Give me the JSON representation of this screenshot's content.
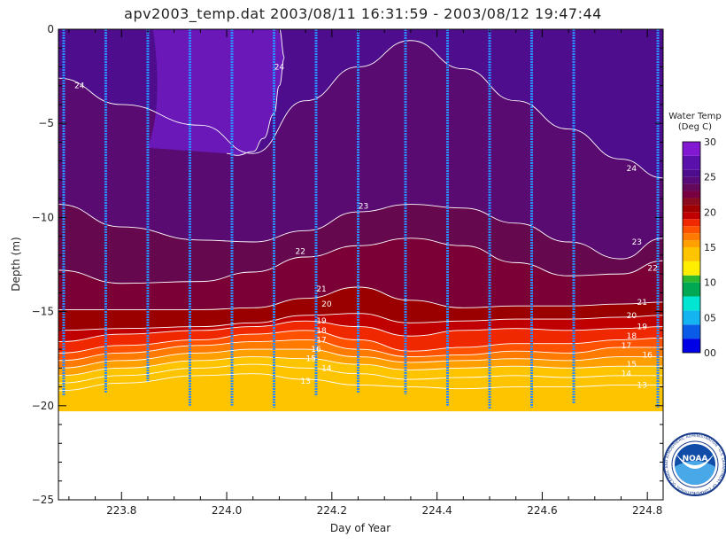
{
  "title": "apv2003_temp.dat  2003/08/11 16:31:59 - 2003/08/12 19:47:44",
  "chart_data": {
    "type": "heatmap",
    "title": "apv2003_temp.dat  2003/08/11 16:31:59 - 2003/08/12 19:47:44",
    "xlabel": "Day of Year",
    "ylabel": "Depth (m)",
    "xlim": [
      223.68,
      224.83
    ],
    "ylim": [
      -25,
      0
    ],
    "x_ticks": [
      {
        "value": 223.8,
        "label": "223.8"
      },
      {
        "value": 224.0,
        "label": "224.0"
      },
      {
        "value": 224.2,
        "label": "224.2"
      },
      {
        "value": 224.4,
        "label": "224.4"
      },
      {
        "value": 224.6,
        "label": "224.6"
      },
      {
        "value": 224.8,
        "label": "224.8"
      }
    ],
    "y_ticks": [
      {
        "value": 0,
        "label": "0"
      },
      {
        "value": -5,
        "label": "−5"
      },
      {
        "value": -10,
        "label": "−10"
      },
      {
        "value": -15,
        "label": "−15"
      },
      {
        "value": -20,
        "label": "−20"
      },
      {
        "value": -25,
        "label": "−25"
      }
    ],
    "data_bottom_depth": -20.3,
    "x_samples": [
      223.68,
      223.8,
      223.95,
      224.05,
      224.15,
      224.25,
      224.35,
      224.45,
      224.55,
      224.65,
      224.75,
      224.83
    ],
    "isotherms": [
      {
        "temp": 13,
        "depths": [
          -19.2,
          -18.8,
          -18.4,
          -18.3,
          -18.6,
          -18.9,
          -19.0,
          -19.1,
          -19.0,
          -19.0,
          -18.9,
          -18.9
        ]
      },
      {
        "temp": 14,
        "depths": [
          -18.8,
          -18.4,
          -18.0,
          -17.8,
          -18.0,
          -18.3,
          -18.6,
          -18.5,
          -18.4,
          -18.5,
          -18.4,
          -18.4
        ]
      },
      {
        "temp": 15,
        "depths": [
          -18.4,
          -18.0,
          -17.6,
          -17.4,
          -17.5,
          -17.8,
          -18.1,
          -18.0,
          -17.9,
          -18.0,
          -17.9,
          -17.9
        ]
      },
      {
        "temp": 16,
        "depths": [
          -18.0,
          -17.6,
          -17.2,
          -17.0,
          -17.0,
          -17.4,
          -17.7,
          -17.6,
          -17.5,
          -17.6,
          -17.4,
          -17.4
        ]
      },
      {
        "temp": 17,
        "depths": [
          -17.6,
          -17.2,
          -16.8,
          -16.6,
          -16.5,
          -17.0,
          -17.4,
          -17.3,
          -17.1,
          -17.2,
          -16.9,
          -16.9
        ]
      },
      {
        "temp": 18,
        "depths": [
          -17.2,
          -16.8,
          -16.5,
          -16.2,
          -16.0,
          -16.5,
          -17.1,
          -16.9,
          -16.7,
          -16.7,
          -16.5,
          -16.4
        ]
      },
      {
        "temp": 19,
        "depths": [
          -16.6,
          -16.2,
          -16.0,
          -15.8,
          -15.5,
          -15.8,
          -16.3,
          -16.0,
          -15.9,
          -16.0,
          -15.9,
          -15.8
        ]
      },
      {
        "temp": 20,
        "depths": [
          -16.0,
          -15.9,
          -15.8,
          -15.6,
          -15.2,
          -15.1,
          -15.6,
          -15.5,
          -15.4,
          -15.4,
          -15.3,
          -15.2
        ]
      },
      {
        "temp": 21,
        "depths": [
          -14.9,
          -14.9,
          -14.9,
          -14.8,
          -14.3,
          -13.7,
          -14.4,
          -14.8,
          -14.7,
          -14.7,
          -14.6,
          -14.5
        ]
      },
      {
        "temp": 22,
        "depths": [
          -12.8,
          -13.5,
          -13.4,
          -12.9,
          -12.1,
          -11.5,
          -11.1,
          -11.5,
          -12.4,
          -13.1,
          -13.0,
          -12.3
        ]
      },
      {
        "temp": 23,
        "depths": [
          -9.3,
          -10.5,
          -11.2,
          -11.3,
          -10.7,
          -9.7,
          -9.3,
          -9.5,
          -10.3,
          -11.3,
          -12.2,
          -11.1
        ]
      },
      {
        "temp": 24,
        "depths": [
          -2.6,
          -4.0,
          -5.1,
          -6.6,
          -3.8,
          -2.0,
          -0.6,
          -2.1,
          -3.8,
          -5.3,
          -6.9,
          -7.9
        ]
      }
    ],
    "warm_core_24": {
      "x": [
        224.1,
        224.11,
        224.1,
        224.09,
        224.07,
        224.05,
        224.02,
        224.0
      ],
      "depths": [
        0,
        -1.5,
        -3,
        -4.5,
        -5.8,
        -6.5,
        -6.7,
        -6.6
      ]
    },
    "contour_labels": [
      {
        "text": "24",
        "x": 224.1,
        "depth": -2.0
      },
      {
        "text": "24",
        "x": 223.72,
        "depth": -3.0
      },
      {
        "text": "24",
        "x": 224.77,
        "depth": -7.4
      },
      {
        "text": "23",
        "x": 224.26,
        "depth": -9.4
      },
      {
        "text": "23",
        "x": 224.78,
        "depth": -11.3
      },
      {
        "text": "22",
        "x": 224.14,
        "depth": -11.8
      },
      {
        "text": "22",
        "x": 224.81,
        "depth": -12.7
      },
      {
        "text": "21",
        "x": 224.18,
        "depth": -13.8
      },
      {
        "text": "21",
        "x": 224.79,
        "depth": -14.5
      },
      {
        "text": "20",
        "x": 224.19,
        "depth": -14.6
      },
      {
        "text": "20",
        "x": 224.77,
        "depth": -15.2
      },
      {
        "text": "19",
        "x": 224.18,
        "depth": -15.5
      },
      {
        "text": "19",
        "x": 224.79,
        "depth": -15.8
      },
      {
        "text": "18",
        "x": 224.18,
        "depth": -16.0
      },
      {
        "text": "18",
        "x": 224.77,
        "depth": -16.3
      },
      {
        "text": "17",
        "x": 224.18,
        "depth": -16.5
      },
      {
        "text": "17",
        "x": 224.76,
        "depth": -16.8
      },
      {
        "text": "16",
        "x": 224.17,
        "depth": -17.0
      },
      {
        "text": "16",
        "x": 224.8,
        "depth": -17.3
      },
      {
        "text": "15",
        "x": 224.16,
        "depth": -17.5
      },
      {
        "text": "15",
        "x": 224.77,
        "depth": -17.8
      },
      {
        "text": "14",
        "x": 224.19,
        "depth": -18.0
      },
      {
        "text": "14",
        "x": 224.76,
        "depth": -18.3
      },
      {
        "text": "13",
        "x": 224.15,
        "depth": -18.7
      },
      {
        "text": "13",
        "x": 224.79,
        "depth": -18.9
      }
    ],
    "profiles": [
      {
        "x": 223.69,
        "top": 0,
        "bottom": -19.5
      },
      {
        "x": 223.77,
        "top": 0,
        "bottom": -19.3
      },
      {
        "x": 223.85,
        "top": 0,
        "bottom": -18.7
      },
      {
        "x": 223.93,
        "top": 0,
        "bottom": -20.0
      },
      {
        "x": 224.01,
        "top": 0,
        "bottom": -20.0
      },
      {
        "x": 224.09,
        "top": 0,
        "bottom": -20.1
      },
      {
        "x": 224.17,
        "top": 0,
        "bottom": -19.5
      },
      {
        "x": 224.25,
        "top": 0,
        "bottom": -19.3
      },
      {
        "x": 224.34,
        "top": 0,
        "bottom": -19.4
      },
      {
        "x": 224.42,
        "top": 0,
        "bottom": -20.0
      },
      {
        "x": 224.5,
        "top": 0,
        "bottom": -20.2
      },
      {
        "x": 224.58,
        "top": 0,
        "bottom": -20.1
      },
      {
        "x": 224.66,
        "top": 0,
        "bottom": -19.9
      },
      {
        "x": 224.82,
        "top": 0,
        "bottom": -20.1
      }
    ],
    "colorbar": {
      "title_lines": [
        "Water Temp",
        "(Deg C)"
      ],
      "range": [
        0,
        30
      ],
      "tick_labels": [
        {
          "value": 30,
          "label": "30"
        },
        {
          "value": 25,
          "label": "25"
        },
        {
          "value": 20,
          "label": "20"
        },
        {
          "value": 15,
          "label": "15"
        },
        {
          "value": 10,
          "label": "10"
        },
        {
          "value": 5,
          "label": "05"
        },
        {
          "value": 0,
          "label": "00"
        }
      ],
      "colors": [
        {
          "from": 0,
          "to": 2,
          "color": "#0000e6"
        },
        {
          "from": 2,
          "to": 4,
          "color": "#0a5ce8"
        },
        {
          "from": 4,
          "to": 6,
          "color": "#14b4f0"
        },
        {
          "from": 6,
          "to": 8,
          "color": "#00e6d2"
        },
        {
          "from": 8,
          "to": 10,
          "color": "#00a854"
        },
        {
          "from": 10,
          "to": 11,
          "color": "#2eb82e"
        },
        {
          "from": 11,
          "to": 13,
          "color": "#ffee00"
        },
        {
          "from": 13,
          "to": 15,
          "color": "#ffc400"
        },
        {
          "from": 15,
          "to": 16,
          "color": "#ffa000"
        },
        {
          "from": 16,
          "to": 17,
          "color": "#ff7a00"
        },
        {
          "from": 17,
          "to": 18,
          "color": "#ff5200"
        },
        {
          "from": 18,
          "to": 19,
          "color": "#f02800"
        },
        {
          "from": 19,
          "to": 20,
          "color": "#c00000"
        },
        {
          "from": 20,
          "to": 21,
          "color": "#a00000"
        },
        {
          "from": 21,
          "to": 22,
          "color": "#8a0a1e"
        },
        {
          "from": 22,
          "to": 23,
          "color": "#780040"
        },
        {
          "from": 23,
          "to": 24,
          "color": "#64085a"
        },
        {
          "from": 24,
          "to": 25,
          "color": "#580a78"
        },
        {
          "from": 25,
          "to": 26,
          "color": "#4c0c8c"
        },
        {
          "from": 26,
          "to": 28,
          "color": "#5a10aa"
        },
        {
          "from": 28,
          "to": 30,
          "color": "#8218d2"
        }
      ]
    },
    "fill_colors": {
      "above_24": "#4e0d8c",
      "warm_core": "#6a18b8",
      "23_24": "#5a0b72",
      "22_23": "#66084e",
      "21_22": "#7a0036",
      "20_21": "#9a0000",
      "below_13": "#ffc400",
      "no_data": "#ffffff"
    },
    "profile_color": "#2b8cff",
    "isotherm_color": "#ffffff"
  },
  "logo": {
    "text": "NOAA",
    "ring_text": "NATIONAL OCEANIC AND ATMOSPHERIC ADMINISTRATION · U.S. DEPARTMENT OF COMMERCE"
  }
}
